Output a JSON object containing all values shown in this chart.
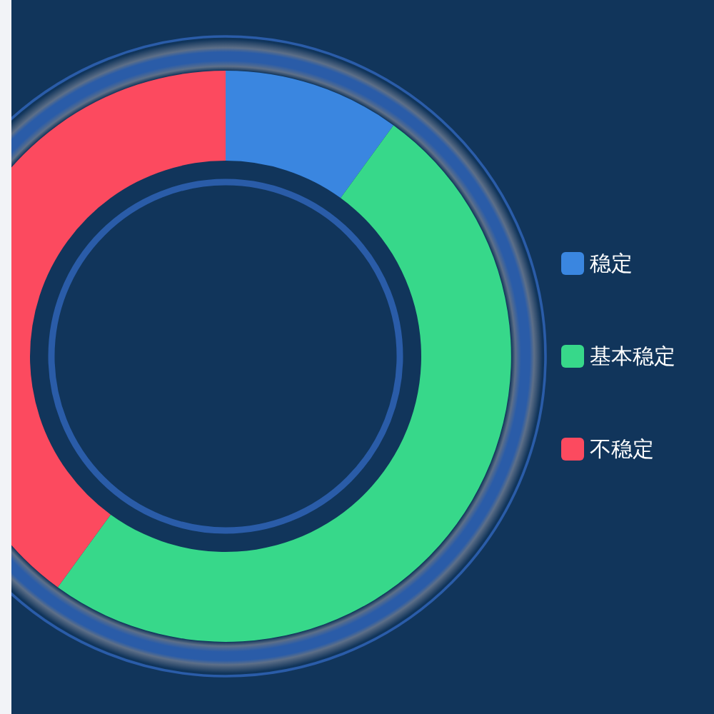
{
  "chart_data": {
    "type": "donut",
    "categories": [
      "稳定",
      "基本稳定",
      "不稳定"
    ],
    "values": [
      10,
      50,
      40
    ],
    "colors": [
      "#3a86e0",
      "#37d88a",
      "#fc4a5f"
    ],
    "legend": "right"
  }
}
